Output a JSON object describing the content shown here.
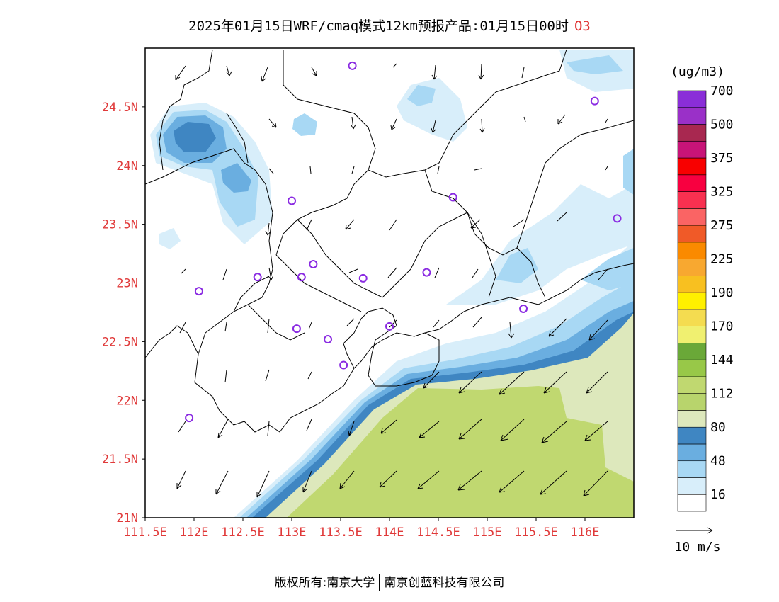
{
  "header": {
    "title": "2025年01月15日WRF/cmaq模式12km预报产品:01月15日00时",
    "species": "O3"
  },
  "map": {
    "lon_range": [
      111.5,
      116.5
    ],
    "lat_range": [
      21.0,
      25.0
    ],
    "x_ticks": [
      {
        "value": 111.5,
        "label": "111.5E"
      },
      {
        "value": 112.0,
        "label": "112E"
      },
      {
        "value": 112.5,
        "label": "112.5E"
      },
      {
        "value": 113.0,
        "label": "113E"
      },
      {
        "value": 113.5,
        "label": "113.5E"
      },
      {
        "value": 114.0,
        "label": "114E"
      },
      {
        "value": 114.5,
        "label": "114.5E"
      },
      {
        "value": 115.0,
        "label": "115E"
      },
      {
        "value": 115.5,
        "label": "115.5E"
      },
      {
        "value": 116.0,
        "label": "116E"
      }
    ],
    "y_ticks": [
      {
        "value": 21.0,
        "label": "21N"
      },
      {
        "value": 21.5,
        "label": "21.5N"
      },
      {
        "value": 22.0,
        "label": "22N"
      },
      {
        "value": 22.5,
        "label": "22.5N"
      },
      {
        "value": 23.0,
        "label": "23N"
      },
      {
        "value": 23.5,
        "label": "23.5N"
      },
      {
        "value": 24.0,
        "label": "24N"
      },
      {
        "value": 24.5,
        "label": "24.5N"
      }
    ],
    "stations": [
      {
        "lon": 113.62,
        "lat": 24.85
      },
      {
        "lon": 116.1,
        "lat": 24.55
      },
      {
        "lon": 113.0,
        "lat": 23.7
      },
      {
        "lon": 114.65,
        "lat": 23.73
      },
      {
        "lon": 116.33,
        "lat": 23.55
      },
      {
        "lon": 112.65,
        "lat": 23.05
      },
      {
        "lon": 112.05,
        "lat": 22.93
      },
      {
        "lon": 113.1,
        "lat": 23.05
      },
      {
        "lon": 113.22,
        "lat": 23.16
      },
      {
        "lon": 113.73,
        "lat": 23.04
      },
      {
        "lon": 114.38,
        "lat": 23.09
      },
      {
        "lon": 113.05,
        "lat": 22.61
      },
      {
        "lon": 113.37,
        "lat": 22.52
      },
      {
        "lon": 114.0,
        "lat": 22.63
      },
      {
        "lon": 113.53,
        "lat": 22.3
      },
      {
        "lon": 115.37,
        "lat": 22.78
      },
      {
        "lon": 111.95,
        "lat": 21.85
      }
    ]
  },
  "legend": {
    "unit": "(ug/m3)",
    "labels": [
      "16",
      "48",
      "80",
      "112",
      "144",
      "170",
      "190",
      "225",
      "275",
      "325",
      "375",
      "500",
      "700"
    ],
    "colors": [
      "#ffffff",
      "#d8eefa",
      "#a8d8f4",
      "#6aaee0",
      "#3f86c2",
      "#dde8bc",
      "#b8d46c",
      "#c0d870",
      "#98c848",
      "#6aa838",
      "#f0f070",
      "#f4dc50",
      "#fff000",
      "#f8c020",
      "#f8a830",
      "#fa8a00",
      "#f05a28",
      "#fa6464",
      "#f83050",
      "#f80040",
      "#f80000",
      "#c81478",
      "#a82850",
      "#9a30c8",
      "#8a2ed8"
    ]
  },
  "wind_scale": {
    "label": "10 m/s"
  },
  "footer": {
    "left": "版权所有:南京大学",
    "right": "南京创蓝科技有限公司"
  }
}
